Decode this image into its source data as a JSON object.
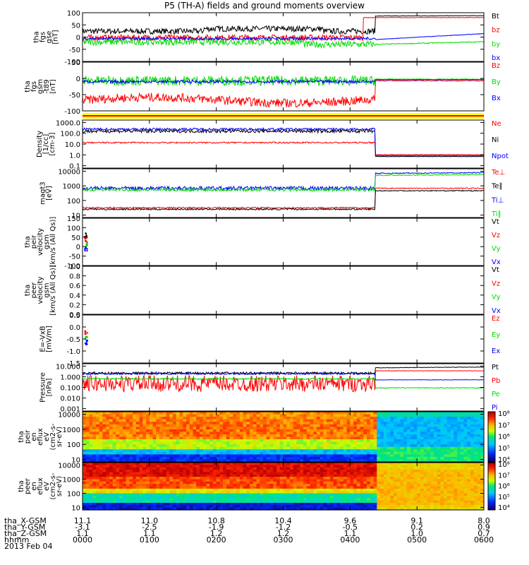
{
  "title": "P5 (TH-A) fields and ground moments overview",
  "date": "2013 Feb 04",
  "colors": {
    "black": "#000000",
    "red": "#ff0000",
    "green": "#00dd00",
    "blue": "#0000ff",
    "yellow": "#ffff00"
  },
  "chart_data": [
    {
      "type": "line",
      "id": "fgs_gse",
      "ylabel": [
        "tha",
        "fgs",
        "gse",
        "[nT]"
      ],
      "yticks": [
        "100",
        "50",
        "0",
        "-50",
        "-100"
      ],
      "ylim": [
        -100,
        100
      ],
      "series": [
        {
          "name": "Bt",
          "color": "#000000"
        },
        {
          "name": "bz",
          "color": "#ff0000"
        },
        {
          "name": "by",
          "color": "#00dd00"
        },
        {
          "name": "bx",
          "color": "#0000ff"
        }
      ]
    },
    {
      "type": "line",
      "id": "fgs_gsm_t89",
      "ylabel": [
        "tha",
        "fgs",
        "gsm",
        "-t89",
        "[nT]"
      ],
      "yticks": [
        "50",
        "0",
        "-50",
        "-100"
      ],
      "ylim": [
        -125,
        75
      ],
      "series": [
        {
          "name": "Bz",
          "color": "#ff0000"
        },
        {
          "name": "By",
          "color": "#00dd00"
        },
        {
          "name": "Bx",
          "color": "#0000ff"
        }
      ]
    },
    {
      "type": "line",
      "id": "density",
      "ylabel": [
        "Density",
        "[1/cc]",
        "[cm-3]"
      ],
      "yticks": [
        "1000.0",
        "100.0",
        "10.0",
        "1.0",
        "0.1"
      ],
      "log": true,
      "series": [
        {
          "name": "Ne",
          "color": "#ff0000"
        },
        {
          "name": "Ni",
          "color": "#000000"
        },
        {
          "name": "Npot",
          "color": "#0000ff"
        }
      ]
    },
    {
      "type": "line",
      "id": "temperature",
      "ylabel": [
        "magt3",
        "[eV]"
      ],
      "yticks": [
        "10000",
        "1000",
        "100",
        "10"
      ],
      "log": true,
      "series": [
        {
          "name": "Te⊥",
          "color": "#ff0000"
        },
        {
          "name": "Te∥",
          "color": "#000000"
        },
        {
          "name": "Ti⊥",
          "color": "#0000ff"
        },
        {
          "name": "Ti∥",
          "color": "#00dd00"
        }
      ]
    },
    {
      "type": "scatter",
      "id": "peir_velocity",
      "ylabel": [
        "tha",
        "peir",
        "velocity",
        "gsm",
        "[km/s (All Qs)]"
      ],
      "yticks": [
        "150",
        "100",
        "50",
        "0",
        "-50",
        "-100"
      ],
      "ylim": [
        -125,
        150
      ],
      "series": [
        {
          "name": "Vt",
          "color": "#000000"
        },
        {
          "name": "Vz",
          "color": "#ff0000"
        },
        {
          "name": "Vy",
          "color": "#00dd00"
        },
        {
          "name": "Vx",
          "color": "#0000ff"
        }
      ]
    },
    {
      "type": "line",
      "id": "peer_velocity",
      "ylabel": [
        "tha",
        "peer",
        "velocity",
        "gsm",
        "[km/s (All Qs)]"
      ],
      "yticks": [
        "1.0",
        "0.8",
        "0.6",
        "0.4",
        "0.2",
        "0.0"
      ],
      "ylim": [
        0,
        1
      ],
      "series": [
        {
          "name": "Vt",
          "color": "#000000"
        },
        {
          "name": "Vz",
          "color": "#ff0000"
        },
        {
          "name": "Vy",
          "color": "#00dd00"
        },
        {
          "name": "Vx",
          "color": "#0000ff"
        }
      ]
    },
    {
      "type": "scatter",
      "id": "efield",
      "ylabel": [
        "E=-VxB",
        "[mV/m]"
      ],
      "yticks": [
        "0.5",
        "0.0",
        "-0.5",
        "-1.0",
        "-1.5"
      ],
      "ylim": [
        -1.75,
        0.75
      ],
      "series": [
        {
          "name": "Ez",
          "color": "#ff0000"
        },
        {
          "name": "Ey",
          "color": "#00dd00"
        },
        {
          "name": "Ex",
          "color": "#0000ff"
        }
      ]
    },
    {
      "type": "line",
      "id": "pressure",
      "ylabel": [
        "Pressure",
        "[nPa]"
      ],
      "yticks": [
        "10.000",
        "1.000",
        "0.100",
        "0.010",
        "0.001"
      ],
      "log": true,
      "series": [
        {
          "name": "Pt",
          "color": "#000000"
        },
        {
          "name": "Pb",
          "color": "#ff0000"
        },
        {
          "name": "Pe",
          "color": "#00dd00"
        },
        {
          "name": "Pi",
          "color": "#0000ff"
        }
      ]
    },
    {
      "type": "heatmap",
      "id": "peir_en_eflux",
      "ylabel": [
        "tha",
        "peir",
        "en",
        "eflux",
        "eV",
        "(cm2-s-",
        "sr-eV)"
      ],
      "yticks": [
        "10000",
        "1000",
        "100",
        "10"
      ],
      "log": true,
      "colorbar": [
        "10⁸",
        "10⁷",
        "10⁶",
        "10⁵",
        "10⁴"
      ]
    },
    {
      "type": "heatmap",
      "id": "peer_en_eflux",
      "ylabel": [
        "tha",
        "peer",
        "en",
        "eflux",
        "eV",
        "(cm2-s-",
        "sr-eV)"
      ],
      "yticks": [
        "10000",
        "1000",
        "100",
        "10"
      ],
      "log": true,
      "colorbar": [
        "10⁸",
        "10⁷",
        "10⁶",
        "10⁵",
        "10⁴"
      ]
    }
  ],
  "ephemeris": {
    "labels": [
      "tha_X-GSM",
      "tha_Y-GSM",
      "tha_Z-GSM",
      "hhmm"
    ],
    "columns": [
      {
        "x": "11.1",
        "y": "-3.1",
        "z": "1.1",
        "t": "0000"
      },
      {
        "x": "11.0",
        "y": "-2.5",
        "z": "1.1",
        "t": "0100"
      },
      {
        "x": "10.8",
        "y": "-1.9",
        "z": "1.2",
        "t": "0200"
      },
      {
        "x": "10.4",
        "y": "-1.2",
        "z": "1.2",
        "t": "0300"
      },
      {
        "x": "9.6",
        "y": "-0.5",
        "z": "1.1",
        "t": "0400"
      },
      {
        "x": "9.1",
        "y": "0.2",
        "z": "1.0",
        "t": "0500"
      },
      {
        "x": "8.0",
        "y": "0.9",
        "z": "0.7",
        "t": "0600"
      }
    ]
  }
}
